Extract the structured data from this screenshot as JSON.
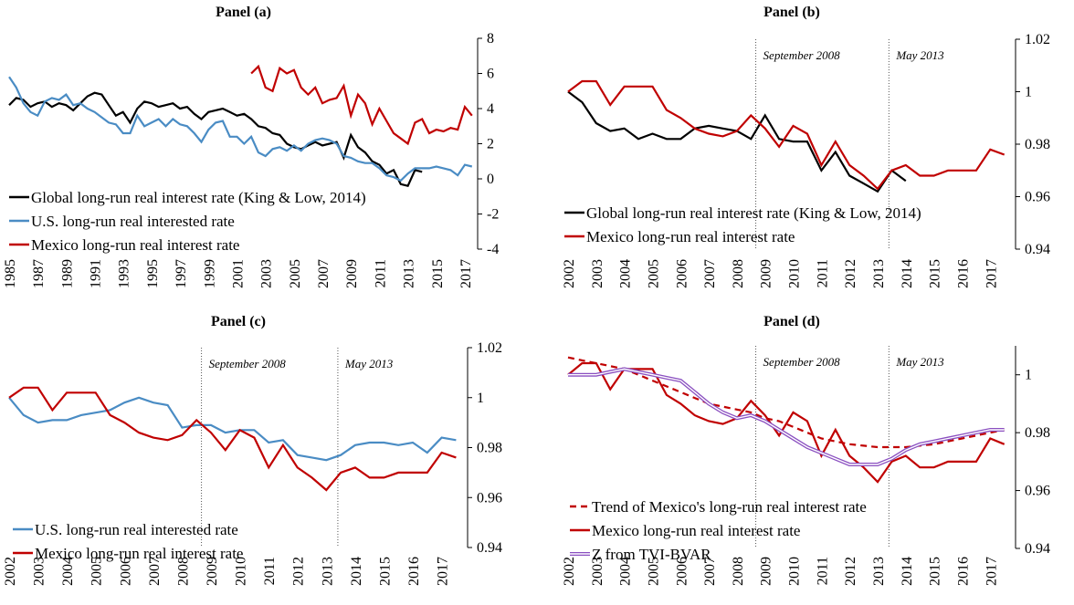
{
  "chart_data": [
    {
      "type": "line",
      "title": "Panel (a)",
      "x": [
        1985,
        1985.5,
        1986,
        1986.5,
        1987,
        1987.5,
        1988,
        1988.5,
        1989,
        1989.5,
        1990,
        1990.5,
        1991,
        1991.5,
        1992,
        1992.5,
        1993,
        1993.5,
        1994,
        1994.5,
        1995,
        1995.5,
        1996,
        1996.5,
        1997,
        1997.5,
        1998,
        1998.5,
        1999,
        1999.5,
        2000,
        2000.5,
        2001,
        2001.5,
        2002,
        2002.5,
        2003,
        2003.5,
        2004,
        2004.5,
        2005,
        2005.5,
        2006,
        2006.5,
        2007,
        2007.5,
        2008,
        2008.5,
        2009,
        2009.5,
        2010,
        2010.5,
        2011,
        2011.5,
        2012,
        2012.5,
        2013,
        2013.5,
        2014,
        2014.5,
        2015,
        2015.5,
        2016,
        2016.5,
        2017,
        2017.5
      ],
      "xlim": [
        1985,
        2017.9
      ],
      "xticks": [
        1985,
        1987,
        1989,
        1991,
        1993,
        1995,
        1997,
        1999,
        2001,
        2003,
        2005,
        2007,
        2009,
        2011,
        2013,
        2015,
        2017
      ],
      "ylim": [
        -4,
        8
      ],
      "yticks": [
        8,
        6,
        4,
        2,
        0,
        -2,
        -4
      ],
      "series": [
        {
          "name": "Global long-run real interest rate (King & Low, 2014)",
          "color": "#000000",
          "values": [
            4.2,
            4.6,
            4.5,
            4.1,
            4.3,
            4.4,
            4.1,
            4.3,
            4.2,
            3.9,
            4.3,
            4.7,
            4.9,
            4.8,
            4.2,
            3.6,
            3.8,
            3.2,
            4.0,
            4.4,
            4.3,
            4.1,
            4.2,
            4.3,
            4.0,
            4.1,
            3.7,
            3.4,
            3.8,
            3.9,
            4.0,
            3.8,
            3.6,
            3.7,
            3.4,
            3.0,
            2.9,
            2.6,
            2.5,
            2.0,
            1.8,
            1.7,
            1.9,
            2.1,
            1.9,
            2.0,
            2.1,
            1.2,
            2.5,
            1.8,
            1.5,
            1.0,
            0.8,
            0.3,
            0.5,
            -0.3,
            -0.4,
            0.5,
            0.4,
            null,
            null,
            null,
            null,
            null,
            null,
            null
          ]
        },
        {
          "name": "U.S. long-run real interested rate",
          "color": "#4a8cc4",
          "values": [
            5.8,
            5.2,
            4.3,
            3.8,
            3.6,
            4.4,
            4.6,
            4.5,
            4.8,
            4.2,
            4.3,
            4.0,
            3.8,
            3.5,
            3.2,
            3.1,
            2.6,
            2.6,
            3.6,
            3.0,
            3.2,
            3.4,
            3.0,
            3.4,
            3.1,
            3.0,
            2.6,
            2.1,
            2.8,
            3.2,
            3.3,
            2.4,
            2.4,
            2.0,
            2.4,
            1.5,
            1.3,
            1.7,
            1.8,
            1.6,
            1.9,
            1.6,
            2.0,
            2.2,
            2.3,
            2.2,
            2.0,
            1.3,
            1.2,
            1.0,
            0.9,
            0.9,
            0.6,
            0.2,
            0.1,
            -0.1,
            0.3,
            0.6,
            0.6,
            0.6,
            0.7,
            0.6,
            0.5,
            0.2,
            0.8,
            0.7
          ]
        },
        {
          "name": "Mexico long-run real interest rate",
          "color": "#c00000",
          "values": [
            null,
            null,
            null,
            null,
            null,
            null,
            null,
            null,
            null,
            null,
            null,
            null,
            null,
            null,
            null,
            null,
            null,
            null,
            null,
            null,
            null,
            null,
            null,
            null,
            null,
            null,
            null,
            null,
            null,
            null,
            null,
            null,
            null,
            null,
            6.0,
            6.4,
            5.2,
            5.0,
            6.3,
            6.0,
            6.2,
            5.2,
            4.8,
            5.2,
            4.3,
            4.5,
            4.6,
            5.3,
            3.6,
            4.8,
            4.3,
            3.1,
            4.0,
            3.3,
            2.6,
            2.3,
            2.0,
            3.2,
            3.4,
            2.6,
            2.8,
            2.7,
            2.9,
            2.8,
            4.1,
            3.6
          ]
        }
      ]
    },
    {
      "type": "line",
      "title": "Panel (b)",
      "x": [
        2002,
        2002.5,
        2003,
        2003.5,
        2004,
        2004.5,
        2005,
        2005.5,
        2006,
        2006.5,
        2007,
        2007.5,
        2008,
        2008.5,
        2009,
        2009.5,
        2010,
        2010.5,
        2011,
        2011.5,
        2012,
        2012.5,
        2013,
        2013.5,
        2014,
        2014.5,
        2015,
        2015.5,
        2016,
        2016.5,
        2017,
        2017.5
      ],
      "xlim": [
        2002,
        2017.9
      ],
      "xticks": [
        2002,
        2003,
        2004,
        2005,
        2006,
        2007,
        2008,
        2009,
        2010,
        2011,
        2012,
        2013,
        2014,
        2015,
        2016,
        2017
      ],
      "ylim": [
        0.94,
        1.02
      ],
      "yticks": [
        1.02,
        1,
        0.98,
        0.96,
        0.94
      ],
      "annotations": [
        {
          "x": 2008.67,
          "label": "September 2008"
        },
        {
          "x": 2013.4,
          "label": "May 2013"
        }
      ],
      "series": [
        {
          "name": "Global long-run real interest rate (King & Low, 2014)",
          "color": "#000000",
          "values": [
            1.0,
            0.996,
            0.988,
            0.985,
            0.986,
            0.982,
            0.984,
            0.982,
            0.982,
            0.986,
            0.987,
            0.986,
            0.985,
            0.982,
            0.991,
            0.982,
            0.981,
            0.981,
            0.97,
            0.977,
            0.968,
            0.965,
            0.962,
            0.97,
            0.966,
            null,
            null,
            null,
            null,
            null,
            null,
            null
          ]
        },
        {
          "name": "Mexico long-run real interest rate",
          "color": "#c00000",
          "values": [
            1.0,
            1.004,
            1.004,
            0.995,
            1.002,
            1.002,
            1.002,
            0.993,
            0.99,
            0.986,
            0.984,
            0.983,
            0.985,
            0.991,
            0.986,
            0.979,
            0.987,
            0.984,
            0.972,
            0.981,
            0.972,
            0.968,
            0.963,
            0.97,
            0.972,
            0.968,
            0.968,
            0.97,
            0.97,
            0.97,
            0.978,
            0.976
          ]
        }
      ]
    },
    {
      "type": "line",
      "title": "Panel (c)",
      "x": [
        2002,
        2002.5,
        2003,
        2003.5,
        2004,
        2004.5,
        2005,
        2005.5,
        2006,
        2006.5,
        2007,
        2007.5,
        2008,
        2008.5,
        2009,
        2009.5,
        2010,
        2010.5,
        2011,
        2011.5,
        2012,
        2012.5,
        2013,
        2013.5,
        2014,
        2014.5,
        2015,
        2015.5,
        2016,
        2016.5,
        2017,
        2017.5
      ],
      "xlim": [
        2002,
        2017.9
      ],
      "xticks": [
        2002,
        2003,
        2004,
        2005,
        2006,
        2007,
        2008,
        2009,
        2010,
        2011,
        2012,
        2013,
        2014,
        2015,
        2016,
        2017
      ],
      "ylim": [
        0.94,
        1.02
      ],
      "yticks": [
        1.02,
        1,
        0.98,
        0.96,
        0.94
      ],
      "annotations": [
        {
          "x": 2008.67,
          "label": "September 2008"
        },
        {
          "x": 2013.4,
          "label": "May 2013"
        }
      ],
      "series": [
        {
          "name": "U.S. long-run real interested rate",
          "color": "#4a8cc4",
          "values": [
            1.0,
            0.993,
            0.99,
            0.991,
            0.991,
            0.993,
            0.994,
            0.995,
            0.998,
            1.0,
            0.998,
            0.997,
            0.988,
            0.989,
            0.989,
            0.986,
            0.987,
            0.987,
            0.982,
            0.983,
            0.977,
            0.976,
            0.975,
            0.977,
            0.981,
            0.982,
            0.982,
            0.981,
            0.982,
            0.978,
            0.984,
            0.983
          ]
        },
        {
          "name": "Mexico long-run real interest rate",
          "color": "#c00000",
          "values": [
            1.0,
            1.004,
            1.004,
            0.995,
            1.002,
            1.002,
            1.002,
            0.993,
            0.99,
            0.986,
            0.984,
            0.983,
            0.985,
            0.991,
            0.986,
            0.979,
            0.987,
            0.984,
            0.972,
            0.981,
            0.972,
            0.968,
            0.963,
            0.97,
            0.972,
            0.968,
            0.968,
            0.97,
            0.97,
            0.97,
            0.978,
            0.976
          ]
        }
      ]
    },
    {
      "type": "line",
      "title": "Panel (d)",
      "x": [
        2002,
        2002.5,
        2003,
        2003.5,
        2004,
        2004.5,
        2005,
        2005.5,
        2006,
        2006.5,
        2007,
        2007.5,
        2008,
        2008.5,
        2009,
        2009.5,
        2010,
        2010.5,
        2011,
        2011.5,
        2012,
        2012.5,
        2013,
        2013.5,
        2014,
        2014.5,
        2015,
        2015.5,
        2016,
        2016.5,
        2017,
        2017.5
      ],
      "xlim": [
        2002,
        2017.9
      ],
      "xticks": [
        2002,
        2003,
        2004,
        2005,
        2006,
        2007,
        2008,
        2009,
        2010,
        2011,
        2012,
        2013,
        2014,
        2015,
        2016,
        2017
      ],
      "ylim": [
        0.94,
        1.01
      ],
      "yticks": [
        1,
        0.98,
        0.96,
        0.94
      ],
      "annotations": [
        {
          "x": 2008.67,
          "label": "September 2008"
        },
        {
          "x": 2013.4,
          "label": "May 2013"
        }
      ],
      "series": [
        {
          "name": "Trend of Mexico's long-run real interest rate",
          "color": "#c00000",
          "dash": true,
          "values": [
            1.006,
            1.005,
            1.004,
            1.003,
            1.002,
            1.0,
            0.998,
            0.996,
            0.994,
            0.992,
            0.99,
            0.989,
            0.988,
            0.987,
            0.985,
            0.984,
            0.982,
            0.98,
            0.978,
            0.977,
            0.976,
            0.9755,
            0.975,
            0.975,
            0.975,
            0.9755,
            0.976,
            0.977,
            0.978,
            0.979,
            0.98,
            0.981
          ]
        },
        {
          "name": "Mexico long-run real interest rate",
          "color": "#c00000",
          "values": [
            1.0,
            1.004,
            1.004,
            0.995,
            1.002,
            1.002,
            1.002,
            0.993,
            0.99,
            0.986,
            0.984,
            0.983,
            0.985,
            0.991,
            0.986,
            0.979,
            0.987,
            0.984,
            0.972,
            0.981,
            0.972,
            0.968,
            0.963,
            0.97,
            0.972,
            0.968,
            0.968,
            0.97,
            0.97,
            0.97,
            0.978,
            0.976
          ]
        },
        {
          "name": "Z from TVI-BVAR",
          "color": "#8a4fc0",
          "double": true,
          "values": [
            1.0,
            1.0,
            1.0,
            1.001,
            1.002,
            1.001,
            1.0,
            0.999,
            0.998,
            0.994,
            0.99,
            0.987,
            0.985,
            0.986,
            0.984,
            0.981,
            0.978,
            0.975,
            0.973,
            0.971,
            0.969,
            0.969,
            0.969,
            0.971,
            0.974,
            0.976,
            0.977,
            0.978,
            0.979,
            0.98,
            0.981,
            0.981
          ]
        }
      ]
    }
  ]
}
